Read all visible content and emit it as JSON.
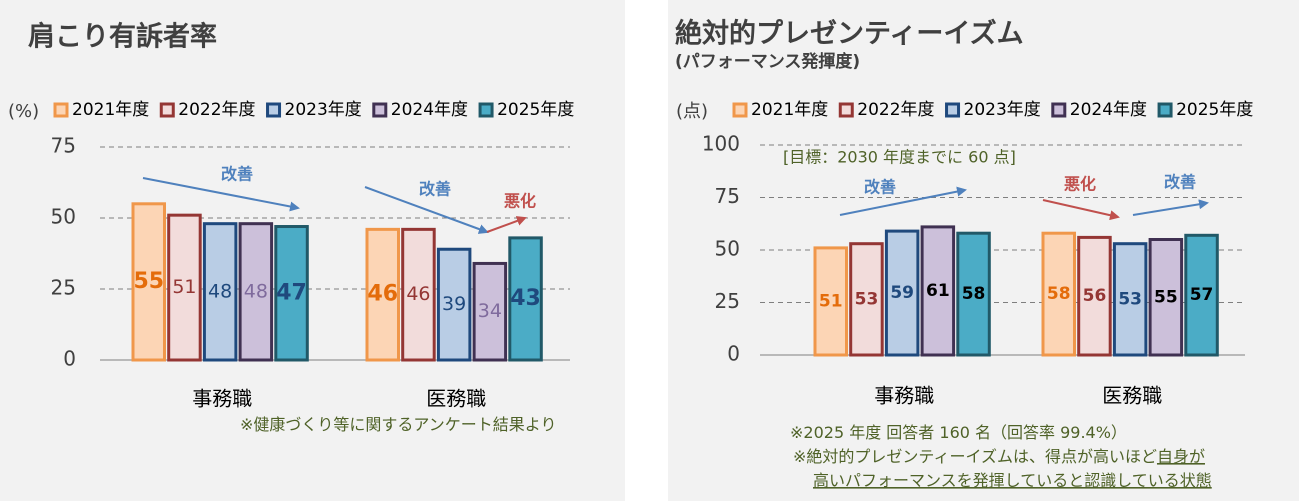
{
  "chart_data": [
    {
      "type": "bar",
      "title": "肩こり有訴者率",
      "y_label": "(%)",
      "categories": [
        "事務職",
        "医務職"
      ],
      "series": [
        {
          "name": "2021年度",
          "color": "#fcd5b5",
          "border": "#f0974a",
          "label_color": "#e46c0a",
          "values": [
            55,
            46
          ]
        },
        {
          "name": "2022年度",
          "color": "#f2dcdb",
          "border": "#943634",
          "label_color": "#943634",
          "values": [
            51,
            46
          ]
        },
        {
          "name": "2023年度",
          "color": "#b9cde5",
          "border": "#1f497d",
          "label_color": "#1f497d",
          "values": [
            48,
            39
          ]
        },
        {
          "name": "2024年度",
          "color": "#ccc0da",
          "border": "#403152",
          "label_color": "#7f6b9d",
          "values": [
            48,
            34
          ]
        },
        {
          "name": "2025年度",
          "color": "#4bacc6",
          "border": "#215968",
          "label_color": "#1f497d",
          "values": [
            47,
            43
          ]
        }
      ],
      "ylim": [
        0,
        75
      ],
      "yticks": [
        0,
        25,
        50,
        75
      ],
      "grid": true,
      "annotations": [
        "改善",
        "改善",
        "悪化"
      ],
      "notes": [
        "※健康づくり等に関するアンケート結果より"
      ]
    },
    {
      "type": "bar",
      "title": "絶対的プレゼンティーイズム",
      "subtitle": "(パフォーマンス発揮度)",
      "y_label": "(点)",
      "categories": [
        "事務職",
        "医務職"
      ],
      "series": [
        {
          "name": "2021年度",
          "color": "#fcd5b5",
          "border": "#f0974a",
          "label_color": "#e46c0a",
          "values": [
            51,
            58
          ]
        },
        {
          "name": "2022年度",
          "color": "#f2dcdb",
          "border": "#943634",
          "label_color": "#943634",
          "values": [
            53,
            56
          ]
        },
        {
          "name": "2023年度",
          "color": "#b9cde5",
          "border": "#1f497d",
          "label_color": "#1f497d",
          "values": [
            59,
            53
          ]
        },
        {
          "name": "2024年度",
          "color": "#ccc0da",
          "border": "#403152",
          "label_color": "#000000",
          "values": [
            61,
            55
          ]
        },
        {
          "name": "2025年度",
          "color": "#4bacc6",
          "border": "#215968",
          "label_color": "#000000",
          "values": [
            58,
            57
          ]
        }
      ],
      "ylim": [
        0,
        100
      ],
      "yticks": [
        0,
        25,
        50,
        75,
        100
      ],
      "grid": true,
      "annotations": [
        "[目標：2030 年度までに 60 点]",
        "改善",
        "悪化",
        "改善"
      ],
      "notes": [
        "※2025 年度  回答者 160 名（回答率 99.4%）",
        "※絶対的プレゼンティーイズムは、得点が高いほど",
        "自身が",
        "高いパフォーマンスを発揮していると認識している状態"
      ]
    }
  ]
}
